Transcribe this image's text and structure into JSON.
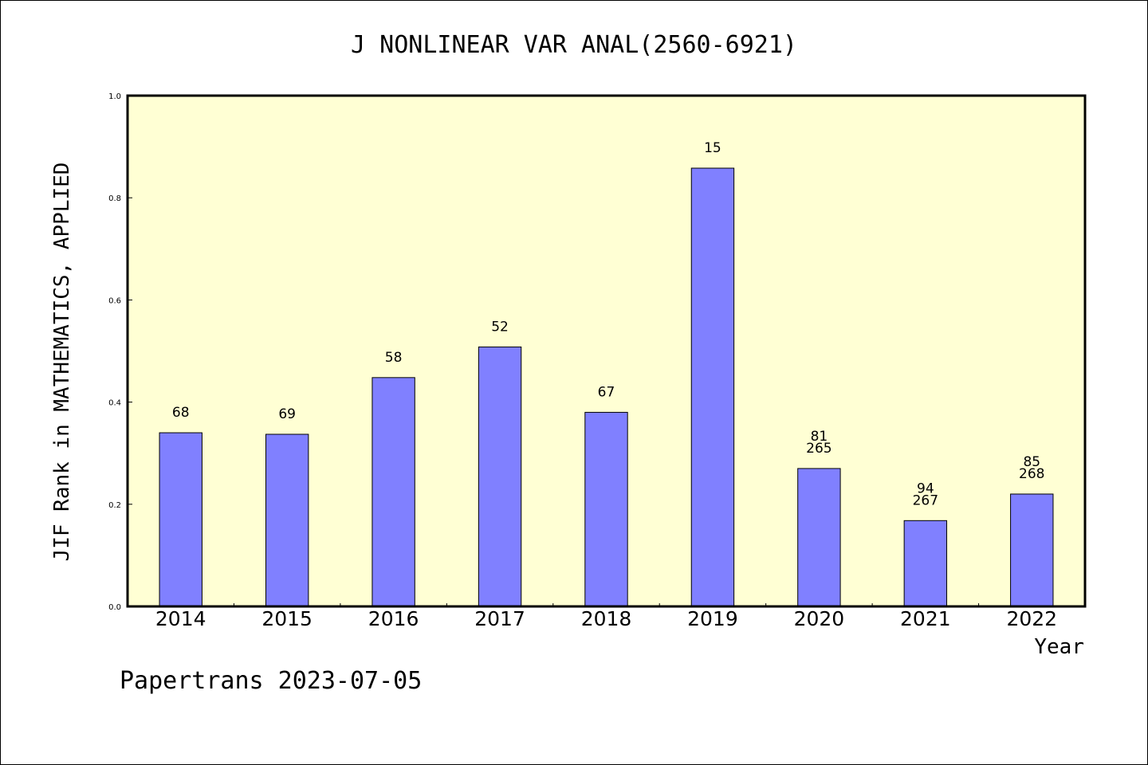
{
  "chart_data": {
    "type": "bar",
    "title": "J NONLINEAR VAR ANAL(2560-6921)",
    "xlabel": "Year",
    "ylabel": "JIF Rank in MATHEMATICS, APPLIED",
    "ylim": [
      0,
      1
    ],
    "yticks": [
      "0.0",
      "0.2",
      "0.4",
      "0.6",
      "0.8",
      "1.0"
    ],
    "categories": [
      "2014",
      "2015",
      "2016",
      "2017",
      "2018",
      "2019",
      "2020",
      "2021",
      "2022"
    ],
    "values": [
      0.34,
      0.337,
      0.448,
      0.508,
      0.38,
      0.858,
      0.27,
      0.168,
      0.22
    ],
    "labels": [
      [
        "68"
      ],
      [
        "69"
      ],
      [
        "58"
      ],
      [
        "52"
      ],
      [
        "67"
      ],
      [
        "15"
      ],
      [
        "81",
        "265"
      ],
      [
        "94",
        "267"
      ],
      [
        "85",
        "268"
      ]
    ],
    "plot_background": "#ffffd4",
    "bar_color": "#8080ff",
    "grid": false
  },
  "footer": {
    "watermark": "Papertrans 2023-07-05"
  }
}
